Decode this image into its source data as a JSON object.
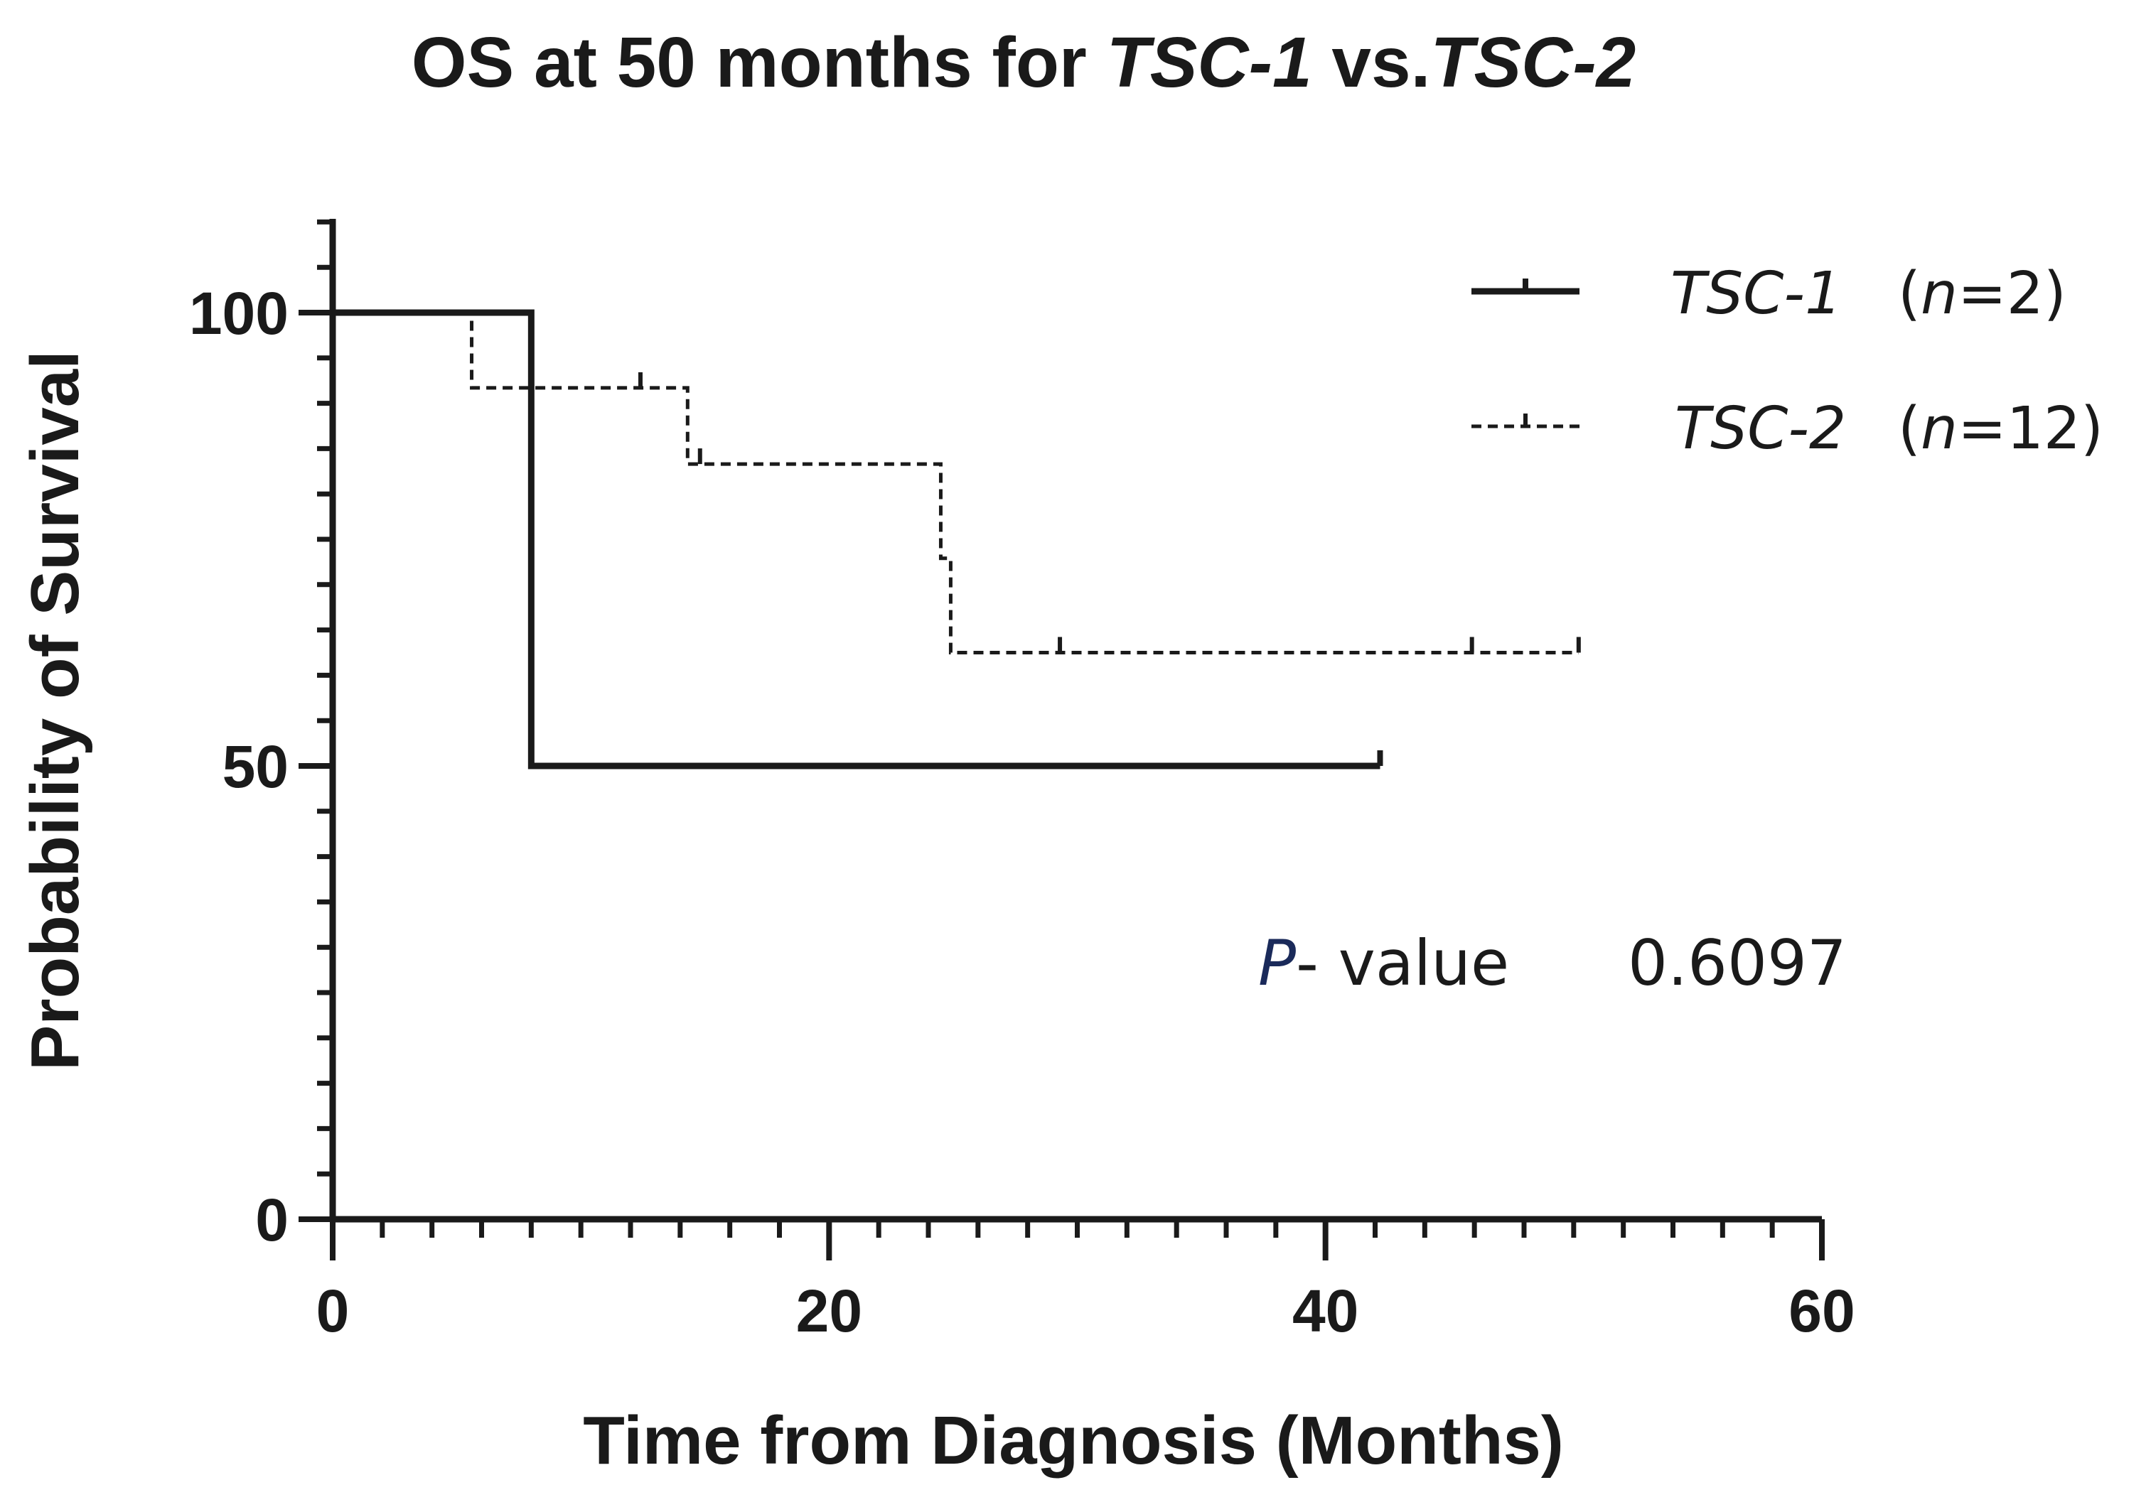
{
  "chart_data": {
    "type": "line",
    "subtype": "kaplan-meier",
    "title": {
      "prefix": "OS at 50 months for ",
      "group1": "TSC-1",
      "separator": " vs.",
      "group2": "TSC-2"
    },
    "xlabel": "Time from Diagnosis (Months)",
    "ylabel": "Probability of Survival",
    "xlim": [
      0,
      60
    ],
    "ylim": [
      0,
      110
    ],
    "x_ticks": [
      0,
      20,
      40,
      60
    ],
    "y_ticks": [
      0,
      50,
      100
    ],
    "x_minor_step": 2,
    "y_minor_step": 5,
    "series": [
      {
        "name": "TSC-1",
        "n_text": "n",
        "n_value": "=2",
        "style": "solid",
        "color": "#1a1a1a",
        "steps": [
          [
            0,
            100
          ],
          [
            8,
            100
          ],
          [
            8,
            50
          ],
          [
            42.2,
            50
          ]
        ],
        "censors": [
          [
            42.2,
            50
          ]
        ]
      },
      {
        "name": "TSC-2",
        "n_text": "n",
        "n_value": "=12",
        "style": "dashed",
        "color": "#1a1a1a",
        "steps": [
          [
            0,
            100
          ],
          [
            5.6,
            100
          ],
          [
            5.6,
            91.7
          ],
          [
            14.3,
            91.7
          ],
          [
            14.3,
            83.3
          ],
          [
            24.5,
            83.3
          ],
          [
            24.5,
            72.9
          ],
          [
            24.9,
            72.9
          ],
          [
            24.9,
            62.5
          ],
          [
            50.2,
            62.5
          ]
        ],
        "censors": [
          [
            12.4,
            91.7
          ],
          [
            14.8,
            83.3
          ],
          [
            29.3,
            62.5
          ],
          [
            45.9,
            62.5
          ],
          [
            50.2,
            62.5
          ]
        ]
      }
    ],
    "annotation": {
      "p_symbol": "P",
      "p_suffix": "- value",
      "p_value": "0.6097"
    },
    "legend_position": "top-right"
  }
}
